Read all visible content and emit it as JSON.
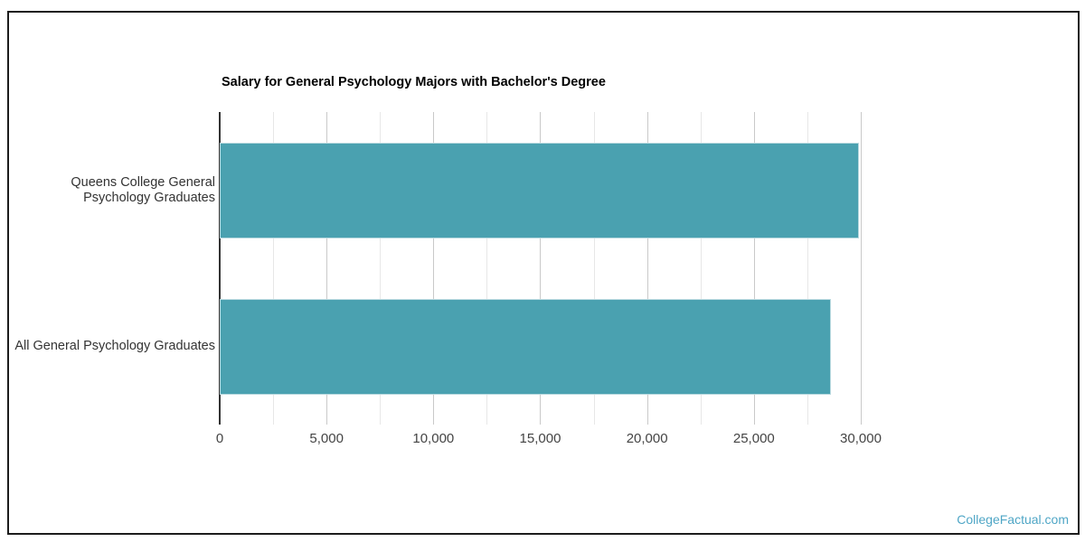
{
  "chart_data": {
    "type": "bar",
    "orientation": "horizontal",
    "title": "Salary for General Psychology Majors with Bachelor's Degree",
    "categories": [
      "Queens College General Psychology Graduates",
      "All General Psychology Graduates"
    ],
    "category_label_lines": [
      [
        "Queens College General",
        "Psychology Graduates"
      ],
      [
        "All General Psychology Graduates"
      ]
    ],
    "values": [
      29900,
      28600
    ],
    "xlim": [
      0,
      31185
    ],
    "x_ticks": [
      {
        "value": 0,
        "label": "0"
      },
      {
        "value": 5000,
        "label": "5,000"
      },
      {
        "value": 10000,
        "label": "10,000"
      },
      {
        "value": 15000,
        "label": "15,000"
      },
      {
        "value": 20000,
        "label": "20,000"
      },
      {
        "value": 25000,
        "label": "25,000"
      },
      {
        "value": 30000,
        "label": "30,000"
      }
    ],
    "gridline_interval": 2500,
    "major_gridline_interval": 5000,
    "grid": true,
    "legend": "none",
    "bar_color": "#4AA1B0",
    "axis_line_color": "#333333",
    "major_gridline_color": "#c9c9c9",
    "minor_gridline_color": "#e7e7e7"
  },
  "watermark": {
    "text": "CollegeFactual.com",
    "color": "#4FA6C6"
  }
}
